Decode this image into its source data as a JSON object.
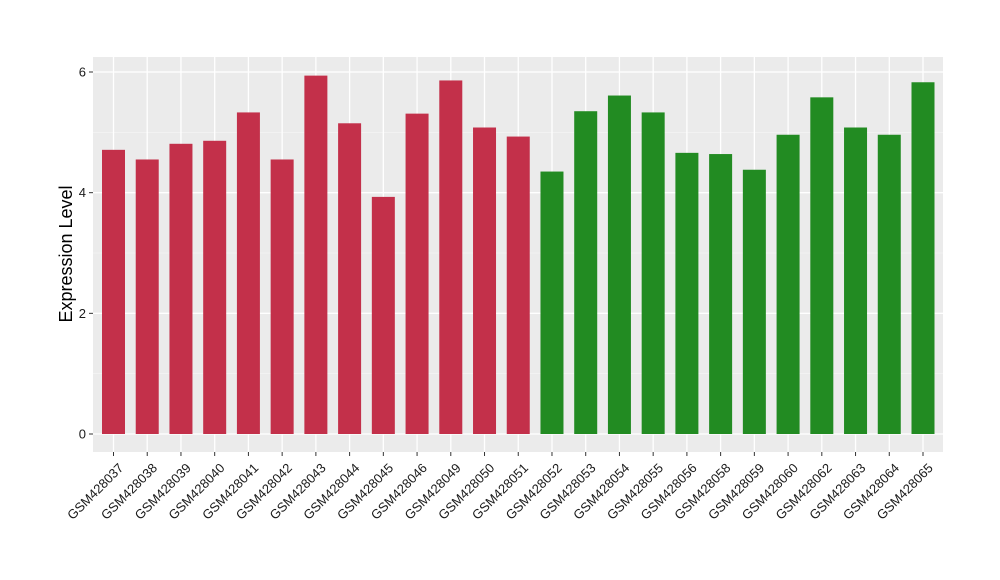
{
  "chart_data": {
    "type": "bar",
    "xlabel": "",
    "ylabel": "Expression Level",
    "ylim": [
      0,
      6.3
    ],
    "yticks": [
      0,
      2,
      4,
      6
    ],
    "grid": true,
    "legend": "none",
    "background": "#ebebeb",
    "categories": [
      "GSM428037",
      "GSM428038",
      "GSM428039",
      "GSM428040",
      "GSM428041",
      "GSM428042",
      "GSM428043",
      "GSM428044",
      "GSM428045",
      "GSM428046",
      "GSM428049",
      "GSM428050",
      "GSM428051",
      "GSM428052",
      "GSM428053",
      "GSM428054",
      "GSM428055",
      "GSM428056",
      "GSM428058",
      "GSM428059",
      "GSM428060",
      "GSM428062",
      "GSM428063",
      "GSM428064",
      "GSM428065"
    ],
    "values": [
      4.71,
      4.55,
      4.81,
      4.86,
      5.33,
      4.55,
      5.94,
      5.15,
      3.93,
      5.31,
      5.86,
      5.08,
      4.93,
      4.35,
      5.35,
      5.61,
      5.33,
      4.66,
      4.64,
      4.38,
      4.96,
      5.58,
      5.08,
      4.96,
      5.83
    ],
    "colors": [
      "#c3304a",
      "#c3304a",
      "#c3304a",
      "#c3304a",
      "#c3304a",
      "#c3304a",
      "#c3304a",
      "#c3304a",
      "#c3304a",
      "#c3304a",
      "#c3304a",
      "#c3304a",
      "#c3304a",
      "#228b22",
      "#228b22",
      "#228b22",
      "#228b22",
      "#228b22",
      "#228b22",
      "#228b22",
      "#228b22",
      "#228b22",
      "#228b22",
      "#228b22",
      "#228b22"
    ]
  }
}
